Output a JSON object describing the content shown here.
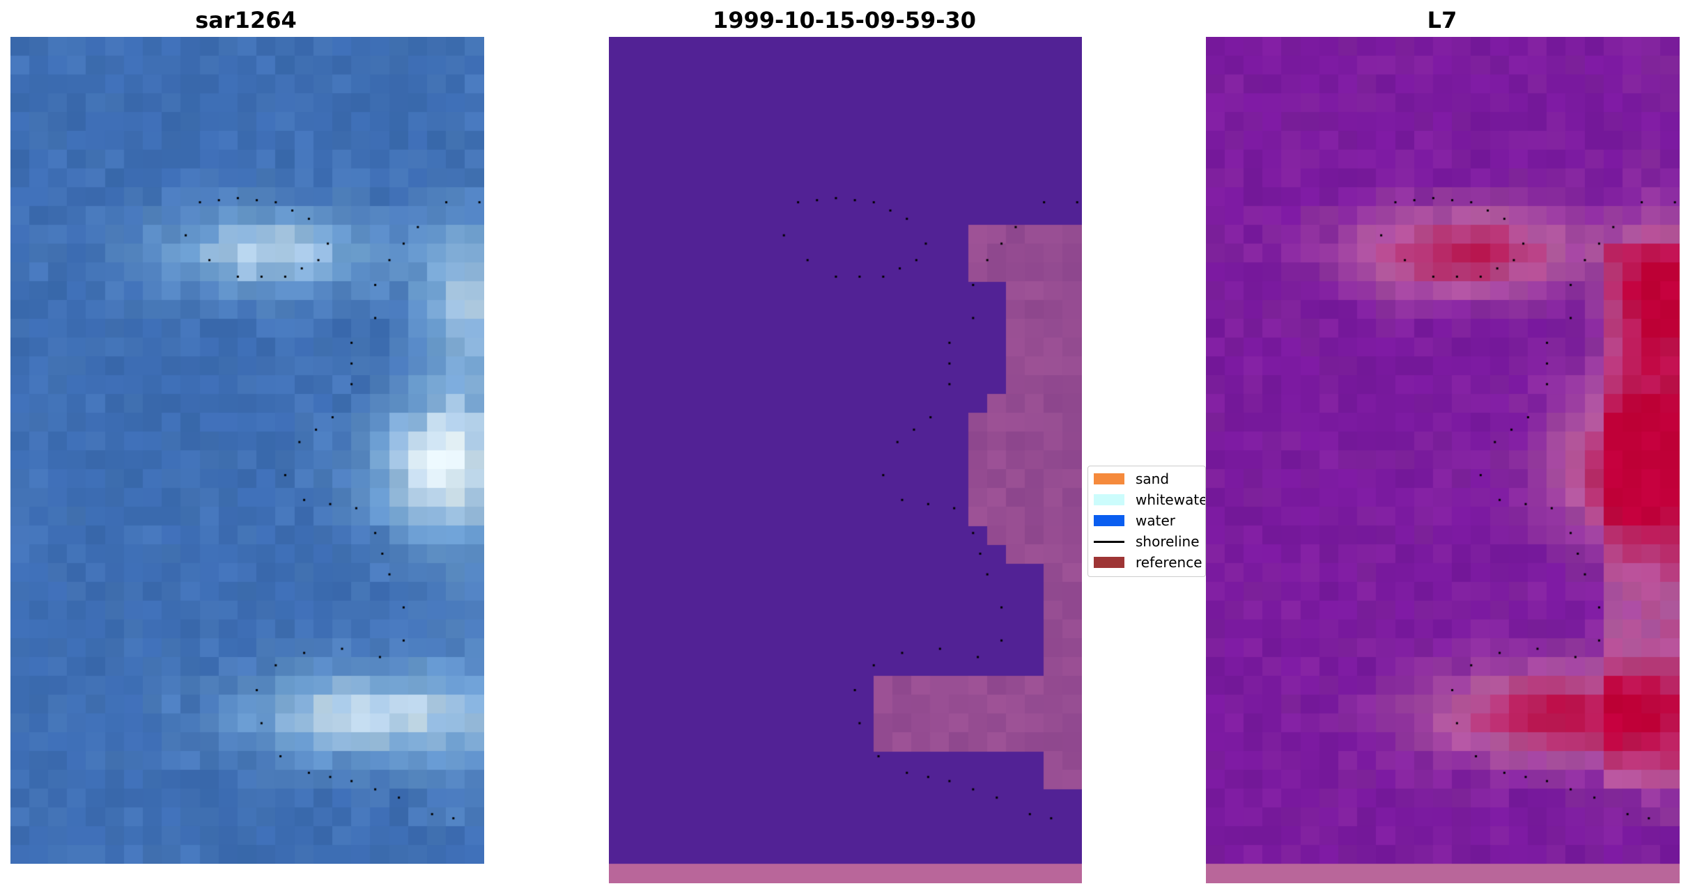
{
  "panels": [
    {
      "title": "sar1264",
      "style": "rgb"
    },
    {
      "title": "1999-10-15-09-59-30",
      "style": "classified"
    },
    {
      "title": "L7",
      "style": "index"
    }
  ],
  "legend": {
    "entries": [
      {
        "label": "sand",
        "color": "#f58a3c",
        "kind": "patch"
      },
      {
        "label": "whitewater",
        "color": "#ccfcfc",
        "kind": "patch"
      },
      {
        "label": "water",
        "color": "#0a5ef0",
        "kind": "patch"
      },
      {
        "label": "shoreline",
        "color": "#000000",
        "kind": "line"
      },
      {
        "label": "reference",
        "color": "#9e3535",
        "kind": "patch"
      }
    ]
  },
  "colors": {
    "rgb_base": "#3d6db3",
    "rgb_bright": "#f2fbfb",
    "classified_water": "#522295",
    "classified_land": "#a85a9c",
    "classified_strip": "#b9669a",
    "index_low": "#7a1a9f",
    "index_high": "#c2003a",
    "shoreline_dots": "#000000"
  }
}
